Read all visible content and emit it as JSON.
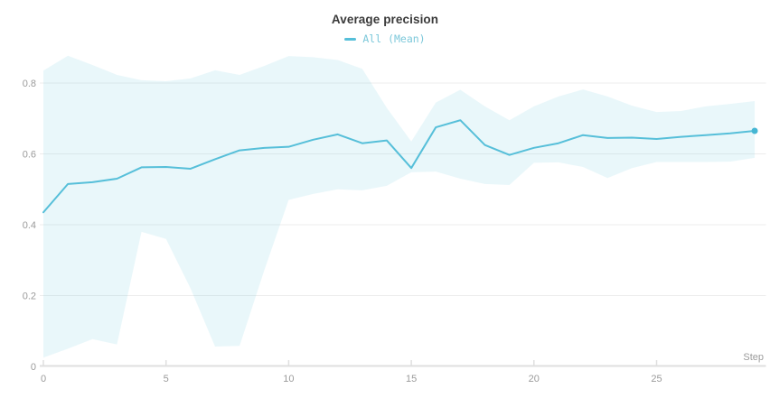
{
  "header": {
    "title": "Average precision"
  },
  "legend": {
    "items": [
      {
        "label": "All (Mean)"
      }
    ]
  },
  "axes": {
    "x": {
      "label": "Step",
      "tick_labels": [
        "0",
        "5",
        "10",
        "15",
        "20",
        "25"
      ],
      "tick_values": [
        0,
        5,
        10,
        15,
        20,
        25
      ]
    },
    "y": {
      "tick_labels": [
        "0",
        "0.2",
        "0.4",
        "0.6",
        "0.8"
      ],
      "tick_values": [
        0,
        0.2,
        0.4,
        0.6,
        0.8
      ]
    }
  },
  "colors": {
    "line": "#56bfd9",
    "end_dot": "#45b6d3",
    "legend_text": "#7cc8da",
    "band_fill": "#56bfd9",
    "band_opacity": 0.13,
    "grid": "#ededed",
    "axis": "#dfdfdf",
    "tick_text": "#9b9b9b",
    "title_text": "#3a3a3a"
  },
  "chart_data": {
    "type": "line",
    "title": "Average precision",
    "xlabel": "Step",
    "ylabel": "",
    "xlim": [
      0,
      29.4
    ],
    "ylim": [
      0,
      0.9
    ],
    "grid": true,
    "legend_position": "top-center",
    "x": [
      0,
      1,
      2,
      3,
      4,
      5,
      6,
      7,
      8,
      9,
      10,
      11,
      12,
      13,
      14,
      15,
      16,
      17,
      18,
      19,
      20,
      21,
      22,
      23,
      24,
      25,
      26,
      27,
      28,
      29
    ],
    "series": [
      {
        "name": "All (Mean)",
        "values": [
          0.435,
          0.515,
          0.52,
          0.53,
          0.562,
          0.563,
          0.558,
          0.585,
          0.61,
          0.617,
          0.62,
          0.64,
          0.655,
          0.63,
          0.638,
          0.56,
          0.675,
          0.695,
          0.625,
          0.597,
          0.617,
          0.63,
          0.653,
          0.645,
          0.646,
          0.642,
          0.648,
          0.653,
          0.658,
          0.665
        ],
        "band_upper": [
          0.835,
          0.877,
          0.851,
          0.823,
          0.808,
          0.805,
          0.813,
          0.836,
          0.823,
          0.848,
          0.876,
          0.873,
          0.865,
          0.84,
          0.73,
          0.635,
          0.745,
          0.781,
          0.734,
          0.695,
          0.734,
          0.762,
          0.782,
          0.762,
          0.736,
          0.718,
          0.721,
          0.734,
          0.741,
          0.749
        ],
        "band_lower": [
          0.025,
          0.05,
          0.077,
          0.062,
          0.38,
          0.36,
          0.22,
          0.056,
          0.058,
          0.27,
          0.47,
          0.487,
          0.5,
          0.497,
          0.51,
          0.548,
          0.55,
          0.53,
          0.515,
          0.512,
          0.575,
          0.576,
          0.563,
          0.532,
          0.56,
          0.577,
          0.577,
          0.577,
          0.578,
          0.589
        ],
        "has_end_marker": true
      }
    ]
  }
}
